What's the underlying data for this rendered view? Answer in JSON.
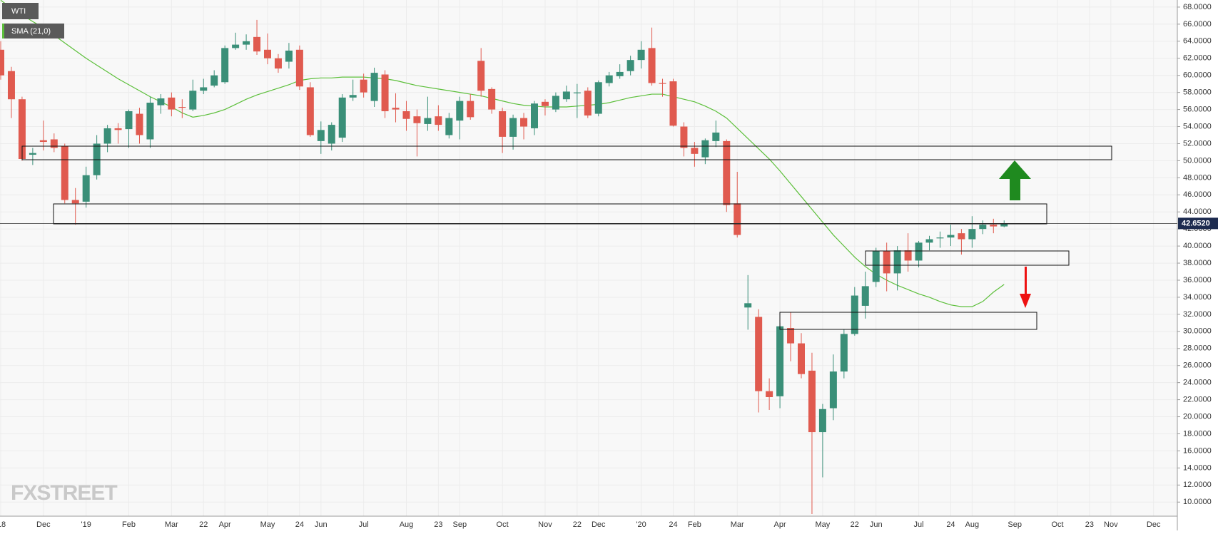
{
  "chart_data": {
    "type": "candlestick",
    "categories": [
      "'18",
      null,
      null,
      null,
      "Dec",
      null,
      null,
      null,
      "'19",
      null,
      null,
      null,
      "Feb",
      null,
      null,
      null,
      "Mar",
      null,
      null,
      "22",
      null,
      "Apr",
      null,
      null,
      null,
      "May",
      null,
      null,
      "24",
      null,
      "Jun",
      null,
      null,
      null,
      "Jul",
      null,
      null,
      null,
      "Aug",
      null,
      null,
      "23",
      null,
      "Sep",
      null,
      null,
      null,
      "Oct",
      null,
      null,
      null,
      "Nov",
      null,
      null,
      "22",
      null,
      "Dec",
      null,
      null,
      null,
      "'20",
      null,
      null,
      "24",
      null,
      "Feb",
      null,
      null,
      null,
      "Mar",
      null,
      null,
      null,
      "Apr",
      null,
      null,
      null,
      "May",
      null,
      null,
      "22",
      null,
      "Jun",
      null,
      null,
      null,
      "Jul",
      null,
      null,
      "24",
      null,
      "Aug",
      null,
      null,
      null,
      "Sep",
      null,
      null,
      null,
      "Oct",
      null,
      null,
      "23",
      null,
      "Nov",
      null,
      null,
      null,
      "Dec",
      null
    ],
    "series": [
      {
        "name": "WTI",
        "type": "candlestick",
        "up_color": "#3a8f78",
        "down_color": "#e05a4f",
        "open": [
          63.0,
          60.5,
          57.2,
          50.7,
          52.4,
          52.5,
          51.7,
          45.4,
          45.2,
          48.3,
          52.0,
          53.8,
          53.7,
          55.5,
          52.5,
          56.5,
          57.4,
          56.3,
          56.0,
          58.2,
          58.8,
          59.2,
          63.2,
          63.6,
          64.5,
          63.0,
          62.0,
          61.6,
          63.0,
          58.6,
          52.3,
          52.0,
          52.7,
          57.4,
          59.5,
          57.0,
          60.1,
          56.2,
          55.8,
          55.2,
          54.3,
          55.2,
          53.0,
          54.7,
          57.0,
          61.7,
          58.4,
          55.8,
          52.8,
          55.0,
          53.8,
          56.9,
          56.0,
          57.2,
          57.9,
          58.2,
          55.5,
          59.1,
          59.9,
          60.5,
          61.8,
          63.2,
          59.1,
          59.3,
          54.0,
          51.5,
          50.4,
          52.3,
          52.3,
          45.0,
          32.8,
          31.7,
          23.0,
          22.4,
          30.4,
          28.6,
          25.4,
          18.2,
          21.0,
          25.3,
          29.7,
          33.0,
          35.8,
          39.4,
          36.8,
          39.5,
          38.3,
          40.4,
          40.9,
          41.0,
          41.5,
          40.8,
          42.0,
          42.5,
          42.3,
          null,
          null,
          null,
          null,
          null,
          null,
          null,
          null,
          null,
          null,
          null,
          null,
          null,
          null,
          null
        ],
        "high": [
          64.0,
          61.0,
          57.5,
          51.5,
          54.7,
          53.2,
          52.0,
          46.8,
          49.3,
          53.0,
          54.2,
          54.4,
          56.0,
          56.2,
          57.5,
          57.8,
          58.0,
          57.2,
          59.5,
          59.6,
          60.6,
          63.5,
          65.0,
          64.8,
          66.5,
          64.9,
          62.5,
          63.8,
          63.5,
          59.2,
          54.6,
          54.5,
          57.8,
          59.5,
          60.2,
          60.9,
          60.6,
          57.9,
          57.0,
          56.0,
          57.5,
          56.5,
          55.6,
          57.5,
          57.8,
          63.2,
          58.6,
          56.2,
          55.4,
          55.6,
          57.0,
          57.2,
          58.0,
          58.8,
          59.0,
          58.6,
          59.4,
          60.4,
          61.3,
          62.3,
          64.0,
          65.6,
          59.6,
          59.6,
          54.5,
          52.2,
          52.6,
          54.7,
          52.5,
          48.7,
          36.6,
          32.6,
          24.5,
          31.0,
          32.2,
          29.8,
          27.5,
          21.5,
          27.3,
          30.2,
          35.2,
          37.0,
          39.8,
          40.4,
          40.0,
          41.5,
          40.6,
          41.2,
          41.7,
          42.5,
          42.0,
          43.5,
          43.0,
          43.2,
          43.0,
          null,
          null,
          null,
          null,
          null,
          null,
          null,
          null,
          null,
          null,
          null,
          null,
          null,
          null,
          null
        ],
        "low": [
          59.5,
          55.0,
          50.0,
          49.5,
          51.2,
          51.0,
          45.0,
          42.5,
          44.5,
          47.8,
          51.0,
          52.0,
          51.5,
          52.0,
          51.5,
          55.5,
          55.2,
          55.0,
          55.8,
          57.8,
          58.6,
          59.0,
          63.0,
          63.0,
          62.4,
          61.3,
          60.3,
          60.8,
          58.3,
          52.8,
          50.8,
          51.2,
          52.2,
          57.0,
          57.4,
          56.3,
          55.0,
          54.5,
          53.5,
          50.5,
          53.5,
          53.5,
          52.6,
          52.5,
          54.8,
          57.5,
          55.5,
          50.9,
          51.3,
          52.5,
          53.0,
          55.3,
          55.7,
          56.9,
          55.0,
          55.0,
          55.2,
          58.7,
          59.6,
          60.0,
          60.8,
          58.8,
          57.5,
          54.0,
          50.5,
          49.3,
          49.6,
          51.6,
          44.0,
          41.0,
          30.2,
          20.5,
          20.8,
          21.0,
          26.5,
          24.5,
          8.6,
          12.9,
          19.6,
          24.5,
          29.5,
          31.5,
          35.2,
          34.7,
          34.8,
          37.0,
          37.5,
          39.5,
          39.8,
          40.0,
          39.0,
          39.8,
          41.4,
          41.5,
          42.2,
          null,
          null,
          null,
          null,
          null,
          null,
          null,
          null,
          null,
          null,
          null,
          null,
          null,
          null,
          null
        ],
        "close": [
          60.0,
          57.2,
          50.2,
          50.9,
          52.2,
          51.5,
          45.4,
          45.0,
          48.3,
          52.0,
          53.8,
          53.6,
          55.8,
          53.0,
          56.8,
          57.3,
          56.0,
          56.2,
          58.2,
          58.6,
          60.0,
          63.2,
          63.6,
          64.0,
          62.8,
          62.0,
          60.8,
          62.9,
          58.7,
          53.0,
          53.6,
          54.2,
          57.4,
          57.7,
          58.0,
          60.3,
          55.8,
          56.0,
          54.9,
          54.4,
          55.0,
          54.2,
          55.0,
          57.0,
          55.1,
          58.2,
          56.0,
          52.8,
          55.0,
          54.0,
          56.7,
          56.4,
          57.6,
          58.1,
          58.0,
          55.3,
          59.2,
          60.0,
          60.4,
          61.8,
          63.0,
          59.1,
          59.0,
          54.1,
          51.5,
          50.8,
          52.4,
          53.3,
          44.8,
          41.3,
          33.3,
          23.0,
          22.3,
          30.6,
          28.6,
          25.0,
          18.2,
          20.9,
          25.3,
          29.7,
          34.2,
          35.3,
          39.4,
          36.8,
          39.5,
          38.3,
          40.4,
          40.8,
          41.0,
          41.3,
          40.8,
          42.0,
          42.5,
          42.3,
          42.65,
          null,
          null,
          null,
          null,
          null,
          null,
          null,
          null,
          null,
          null,
          null,
          null,
          null,
          null,
          null
        ]
      },
      {
        "name": "SMA (21,0)",
        "type": "line",
        "color": "#5cbf3a",
        "values": [
          68.8,
          67.9,
          67.1,
          66.3,
          65.6,
          64.7,
          63.8,
          62.9,
          62.0,
          61.2,
          60.4,
          59.6,
          58.9,
          58.2,
          57.5,
          56.9,
          56.3,
          55.6,
          55.1,
          55.3,
          55.6,
          56.0,
          56.6,
          57.2,
          57.7,
          58.1,
          58.5,
          58.9,
          59.4,
          59.6,
          59.7,
          59.7,
          59.8,
          59.8,
          59.8,
          59.7,
          59.6,
          59.4,
          59.1,
          58.8,
          58.6,
          58.4,
          58.2,
          58.0,
          57.8,
          57.6,
          57.3,
          57.0,
          56.7,
          56.5,
          56.4,
          56.3,
          56.3,
          56.3,
          56.4,
          56.5,
          56.6,
          56.8,
          57.1,
          57.4,
          57.6,
          57.8,
          57.8,
          57.5,
          57.2,
          56.9,
          56.4,
          55.8,
          55.0,
          53.8,
          52.6,
          51.4,
          50.2,
          48.8,
          47.3,
          45.8,
          44.3,
          42.8,
          41.3,
          40.0,
          38.7,
          37.6,
          36.7,
          36.0,
          35.4,
          34.9,
          34.4,
          34.0,
          33.5,
          33.1,
          32.9,
          32.9,
          33.5,
          34.6,
          35.5,
          null,
          null,
          null,
          null,
          null,
          null,
          null,
          null,
          null,
          null,
          null,
          null,
          null,
          null,
          null
        ]
      }
    ],
    "last_price": {
      "value": 42.652,
      "label": "42.6520"
    },
    "ylim": [
      8.35,
      68.83
    ],
    "yticks": [
      {
        "value": 10,
        "label": "10.0000"
      },
      {
        "value": 12,
        "label": "12.0000"
      },
      {
        "value": 14,
        "label": "14.0000"
      },
      {
        "value": 16,
        "label": "16.0000"
      },
      {
        "value": 18,
        "label": "18.0000"
      },
      {
        "value": 20,
        "label": "20.0000"
      },
      {
        "value": 22,
        "label": "22.0000"
      },
      {
        "value": 24,
        "label": "24.0000"
      },
      {
        "value": 26,
        "label": "26.0000"
      },
      {
        "value": 28,
        "label": "28.0000"
      },
      {
        "value": 30,
        "label": "30.0000"
      },
      {
        "value": 32,
        "label": "32.0000"
      },
      {
        "value": 34,
        "label": "34.0000"
      },
      {
        "value": 36,
        "label": "36.0000"
      },
      {
        "value": 38,
        "label": "38.0000"
      },
      {
        "value": 40,
        "label": "40.0000"
      },
      {
        "value": 42,
        "label": "42.0000"
      },
      {
        "value": 44,
        "label": "44.0000"
      },
      {
        "value": 46,
        "label": "46.0000"
      },
      {
        "value": 48,
        "label": "48.0000"
      },
      {
        "value": 50,
        "label": "50.0000"
      },
      {
        "value": 52,
        "label": "52.0000"
      },
      {
        "value": 54,
        "label": "54.0000"
      },
      {
        "value": 56,
        "label": "56.0000"
      },
      {
        "value": 58,
        "label": "58.0000"
      },
      {
        "value": 60,
        "label": "60.0000"
      },
      {
        "value": 62,
        "label": "62.0000"
      },
      {
        "value": 64,
        "label": "64.0000"
      },
      {
        "value": 66,
        "label": "66.0000"
      },
      {
        "value": 68,
        "label": "68.0000"
      }
    ],
    "grid": true,
    "watermark": "FXSTREET"
  }
}
